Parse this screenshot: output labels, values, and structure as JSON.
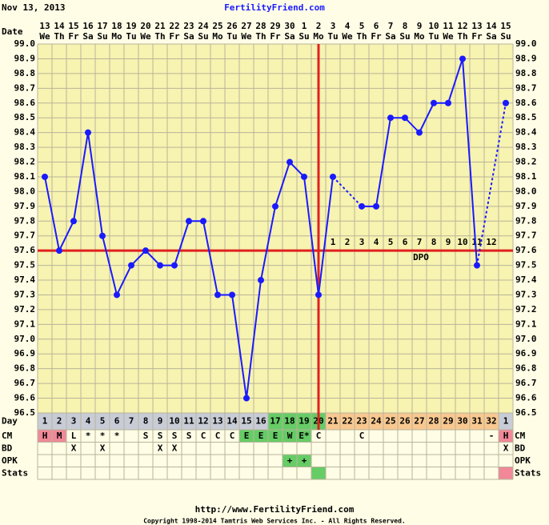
{
  "chart_data": {
    "type": "line",
    "header_date": "Nov 13, 2013",
    "title": "FertilityFriend.com",
    "date_label": "Date",
    "categories": [
      13,
      14,
      15,
      16,
      17,
      18,
      19,
      20,
      21,
      22,
      23,
      24,
      25,
      26,
      27,
      28,
      29,
      30,
      1,
      2,
      3,
      4,
      5,
      6,
      7,
      8,
      9,
      10,
      11,
      12,
      13,
      14,
      15
    ],
    "weekdays": [
      "We",
      "Th",
      "Fr",
      "Sa",
      "Su",
      "Mo",
      "Tu",
      "We",
      "Th",
      "Fr",
      "Sa",
      "Su",
      "Mo",
      "Tu",
      "We",
      "Th",
      "Fr",
      "Sa",
      "Su",
      "Mo",
      "Tu",
      "We",
      "Th",
      "Fr",
      "Sa",
      "Su",
      "Mo",
      "Tu",
      "We",
      "Th",
      "Fr",
      "Sa",
      "Su"
    ],
    "series": [
      {
        "color": "#1a1aff",
        "values": [
          98.1,
          97.6,
          97.8,
          98.4,
          97.7,
          97.3,
          97.5,
          97.6,
          97.5,
          97.5,
          97.8,
          97.8,
          97.3,
          97.3,
          96.6,
          97.4,
          97.9,
          98.2,
          98.1,
          97.3,
          98.1,
          null,
          97.9,
          97.9,
          98.5,
          98.5,
          98.4,
          98.6,
          98.6,
          98.9,
          97.5,
          null,
          98.6
        ]
      }
    ],
    "ylim": [
      96.5,
      99.0
    ],
    "yticks": [
      {
        "value": 96.5,
        "label": "96.5"
      },
      {
        "value": 96.6,
        "label": "96.6"
      },
      {
        "value": 96.7,
        "label": "96.7"
      },
      {
        "value": 96.8,
        "label": "96.8"
      },
      {
        "value": 96.9,
        "label": "96.9"
      },
      {
        "value": 97.0,
        "label": "97.0"
      },
      {
        "value": 97.1,
        "label": "97.1"
      },
      {
        "value": 97.2,
        "label": "97.2"
      },
      {
        "value": 97.3,
        "label": "97.3"
      },
      {
        "value": 97.4,
        "label": "97.4"
      },
      {
        "value": 97.5,
        "label": "97.5"
      },
      {
        "value": 97.6,
        "label": "97.6"
      },
      {
        "value": 97.7,
        "label": "97.7"
      },
      {
        "value": 97.8,
        "label": "97.8"
      },
      {
        "value": 97.9,
        "label": "97.9"
      },
      {
        "value": 98.0,
        "label": "98.0"
      },
      {
        "value": 98.1,
        "label": "98.1"
      },
      {
        "value": 98.2,
        "label": "98.2"
      },
      {
        "value": 98.3,
        "label": "98.3"
      },
      {
        "value": 98.4,
        "label": "98.4"
      },
      {
        "value": 98.5,
        "label": "98.5"
      },
      {
        "value": 98.6,
        "label": "98.6"
      },
      {
        "value": 98.7,
        "label": "98.7"
      },
      {
        "value": 98.8,
        "label": "98.8"
      },
      {
        "value": 98.9,
        "label": "98.9"
      },
      {
        "value": 99.0,
        "label": "99.0"
      }
    ],
    "grid": true,
    "coverline": 97.6,
    "ovulation_day": 20,
    "reference_color": "#e02020",
    "dpo": [
      1,
      2,
      3,
      4,
      5,
      6,
      7,
      8,
      9,
      10,
      11,
      12
    ],
    "dpo_label": "DPO",
    "rows": [
      {
        "label": "Day",
        "cells": [
          1,
          2,
          3,
          4,
          5,
          6,
          7,
          8,
          9,
          10,
          11,
          12,
          13,
          14,
          15,
          16,
          17,
          18,
          19,
          20,
          21,
          22,
          23,
          24,
          25,
          26,
          27,
          28,
          29,
          30,
          31,
          32,
          1
        ],
        "colors": [
          "#c8ccd6",
          "#c8ccd6",
          "#c8ccd6",
          "#c8ccd6",
          "#c8ccd6",
          "#c8ccd6",
          "#c8ccd6",
          "#c8ccd6",
          "#c8ccd6",
          "#c8ccd6",
          "#c8ccd6",
          "#c8ccd6",
          "#c8ccd6",
          "#c8ccd6",
          "#c8ccd6",
          "#c8ccd6",
          "#66cc66",
          "#66cc66",
          "#66cc66",
          "#66cc66",
          "#f8c890",
          "#f8c890",
          "#f8c890",
          "#f8c890",
          "#f8c890",
          "#f8c890",
          "#f8c890",
          "#f8c890",
          "#f8c890",
          "#f8c890",
          "#f8c890",
          "#f8c890",
          "#c8ccd6"
        ]
      },
      {
        "label": "CM",
        "right_label": "CM",
        "cells": [
          "H",
          "M",
          "L",
          "*",
          "*",
          "*",
          null,
          "S",
          "S",
          "S",
          "S",
          "C",
          "C",
          "C",
          "E",
          "E",
          "E",
          "W",
          "E*",
          "C",
          null,
          null,
          "C",
          null,
          null,
          null,
          null,
          null,
          null,
          null,
          null,
          "-",
          "H"
        ],
        "colors": [
          "#f08898",
          "#f08898",
          null,
          null,
          null,
          null,
          null,
          null,
          null,
          null,
          null,
          null,
          null,
          null,
          "#66cc66",
          "#66cc66",
          "#66cc66",
          "#66cc66",
          "#66cc66",
          null,
          null,
          null,
          null,
          null,
          null,
          null,
          null,
          null,
          null,
          null,
          null,
          null,
          "#f08898"
        ]
      },
      {
        "label": "BD",
        "right_label": "BD",
        "cells": [
          null,
          null,
          "X",
          null,
          "X",
          null,
          null,
          null,
          "X",
          "X",
          null,
          null,
          null,
          null,
          null,
          null,
          null,
          null,
          null,
          null,
          null,
          null,
          null,
          null,
          null,
          null,
          null,
          null,
          null,
          null,
          null,
          null,
          "X"
        ]
      },
      {
        "label": "OPK",
        "right_label": "OPK",
        "cells": [
          null,
          null,
          null,
          null,
          null,
          null,
          null,
          null,
          null,
          null,
          null,
          null,
          null,
          null,
          null,
          null,
          null,
          "+",
          "+",
          null,
          null,
          null,
          null,
          null,
          null,
          null,
          null,
          null,
          null,
          null,
          null,
          null,
          null
        ],
        "colors": [
          null,
          null,
          null,
          null,
          null,
          null,
          null,
          null,
          null,
          null,
          null,
          null,
          null,
          null,
          null,
          null,
          null,
          "#66cc66",
          "#66cc66",
          null,
          null,
          null,
          null,
          null,
          null,
          null,
          null,
          null,
          null,
          null,
          null,
          null,
          null
        ]
      },
      {
        "label": "Stats",
        "right_label": "Stats",
        "colors": [
          null,
          null,
          null,
          null,
          null,
          null,
          null,
          null,
          null,
          null,
          null,
          null,
          null,
          null,
          null,
          null,
          null,
          null,
          null,
          "#66cc66",
          null,
          null,
          null,
          null,
          null,
          null,
          null,
          null,
          null,
          null,
          null,
          null,
          "#f08898"
        ]
      }
    ],
    "footer_url": "http://www.FertilityFriend.com",
    "copyright": "Copyright 1998-2014 Tamtris Web Services Inc. - All Rights Reserved."
  }
}
